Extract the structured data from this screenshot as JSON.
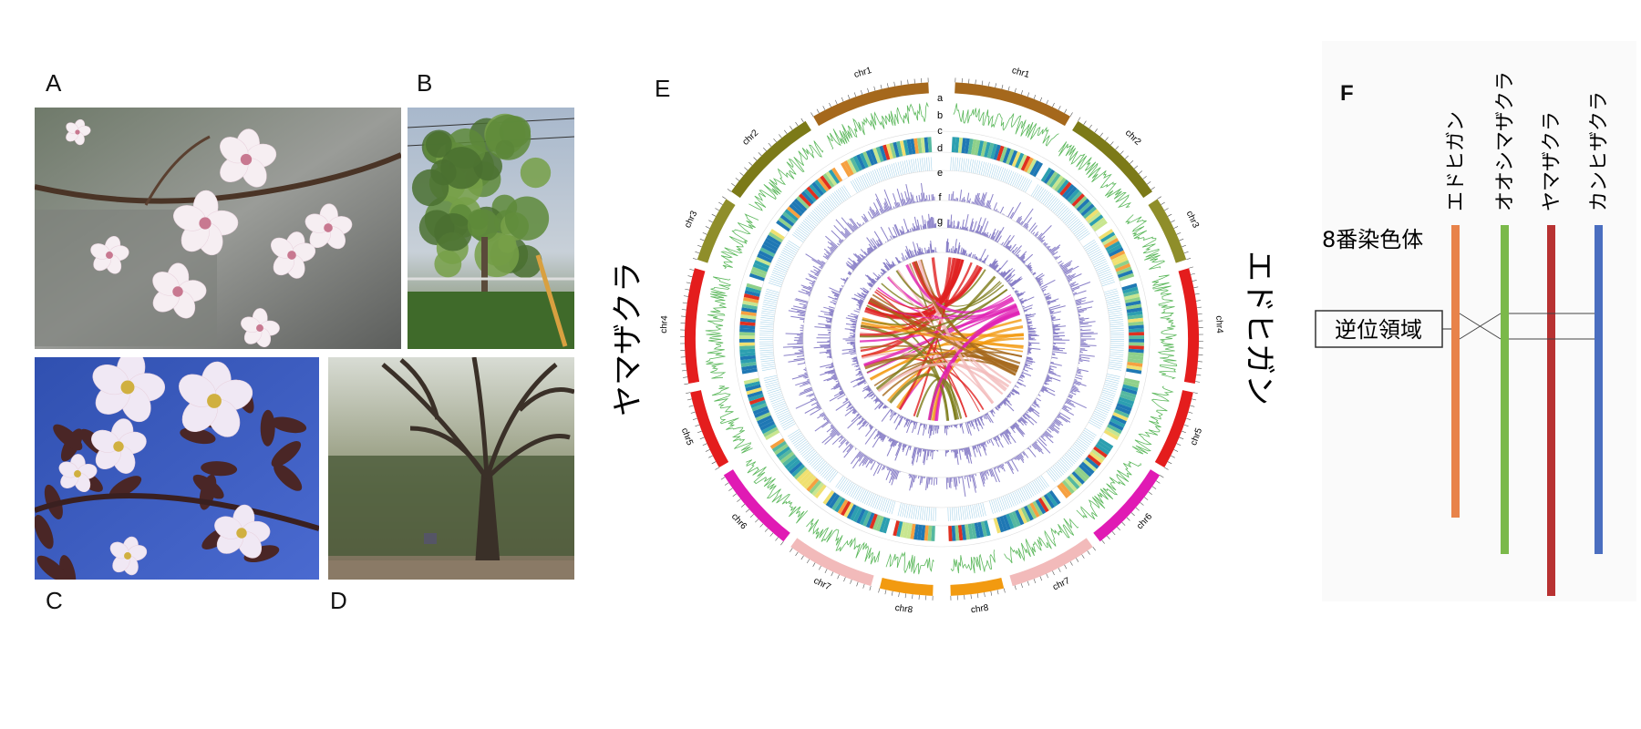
{
  "labels": [
    "A",
    "B",
    "C",
    "D",
    "E",
    "F"
  ],
  "circos": {
    "left_genome": "ヤマザクラ",
    "right_genome": "エドヒガン",
    "chromosomes": [
      "chr1",
      "chr2",
      "chr3",
      "chr4",
      "chr5",
      "chr6",
      "chr7",
      "chr8"
    ],
    "tracks": [
      "a",
      "b",
      "c",
      "d",
      "e",
      "f",
      "g"
    ]
  },
  "diagram": {
    "chromosome_label": "8番染色体",
    "region_label": "逆位領域",
    "species": [
      "エドヒガン",
      "オオシマザクラ",
      "ヤマザクラ",
      "カンヒザクラ"
    ]
  }
}
